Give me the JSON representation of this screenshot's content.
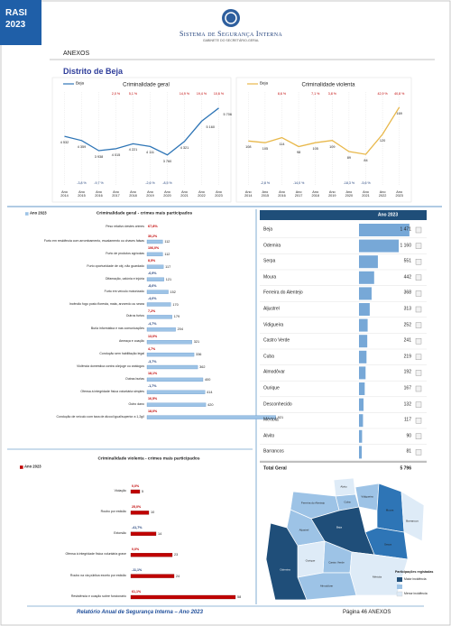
{
  "header": {
    "badge": "RASI 2023",
    "organization": "Sistema de Segurança Interna",
    "subtitle": "Gabinete do Secretário-Geral"
  },
  "section": "ANEXOS",
  "district": "Distrito de Beja",
  "chart_data": [
    {
      "type": "line",
      "title": "Criminalidade geral",
      "categories": [
        "Ano 2014",
        "Ano 2015",
        "Ano 2016",
        "Ano 2017",
        "Ano 2018",
        "Ano 2019",
        "Ano 2020",
        "Ano 2021",
        "Ano 2022",
        "Ano 2023"
      ],
      "series": [
        {
          "name": "Beja",
          "color": "#2e75b6",
          "values": [
            4532,
            4359,
            3938,
            4015,
            4221,
            4111,
            3760,
            4321,
            5160,
            5706
          ],
          "value_labels": [
            "4 532",
            "4 359",
            "3 938",
            "4 015",
            "4 221",
            "4 111",
            "3 760",
            "4 321",
            "5 160",
            "5 706"
          ],
          "change_labels": [
            null,
            "-3,8 %",
            "-9,7 %",
            "2,0 %",
            "5,1 %",
            "-2,6 %",
            "-8,5 %",
            "14,9 %",
            "19,4 %",
            "10,6 %"
          ]
        }
      ],
      "ylim": [
        3000,
        6000
      ]
    },
    {
      "type": "line",
      "title": "Criminalidade violenta",
      "categories": [
        "Ano 2014",
        "Ano 2015",
        "Ano 2016",
        "Ano 2017",
        "Ano 2018",
        "Ano 2019",
        "Ano 2020",
        "Ano 2021",
        "Ano 2022",
        "Ano 2023"
      ],
      "series": [
        {
          "name": "Beja",
          "color": "#e8b84b",
          "values": [
            108,
            105,
            114,
            98,
            105,
            109,
            89,
            84,
            120,
            169
          ],
          "change_labels": [
            null,
            "-2,8 %",
            "8,6 %",
            "-14,0 %",
            "7,1 %",
            "3,8 %",
            "-18,3 %",
            "-5,6 %",
            "42,9 %",
            "40,8 %"
          ]
        }
      ],
      "ylim": [
        50,
        180
      ]
    },
    {
      "type": "bar",
      "orientation": "horizontal",
      "title": "Criminalidade geral - crimes mais participados",
      "note": "Peso relativo destes crimes",
      "note_label": "67,8%",
      "categories": [
        "Furto em residência com arrombamento, escalamento ou chaves falsas",
        "Furto de produtos agrícolas",
        "Furto oportunidade de obj. não guardado",
        "Difamação, calúnia e injúria",
        "Furto em veículo motorizado",
        "Incêndio fogo posto floresta, mata, arvoredo ou seara",
        "Outros furtos",
        "Burla informática e nas comunicações",
        "Ameaça e coação",
        "Condução sem habilitação legal",
        "Violência doméstica contra cônjuge ou análogos",
        "Outras burlas",
        "Ofensa à integridade física voluntária simples",
        "Outro dano",
        "Condução de veículo com taxa de álcool igual/superior a 1,2g/l"
      ],
      "series": [
        {
          "name": "Ano 2023",
          "color": "#9dc3e6",
          "values": [
            112,
            112,
            117,
            121,
            152,
            170,
            179,
            204,
            321,
            336,
            362,
            400,
            414,
            420,
            921
          ],
          "change_labels": [
            "30,2%",
            "106,0%",
            "8,5%",
            "-6,9%",
            "-8,6%",
            "-4,0%",
            "7,2%",
            "-4,7%",
            "13,0%",
            "4,7%",
            "-3,7%",
            "18,1%",
            "-1,7%",
            "16,5%",
            "18,0%"
          ]
        }
      ],
      "xlim": [
        0,
        1000
      ]
    },
    {
      "type": "bar",
      "orientation": "horizontal",
      "title": "Criminalidade violenta - crimes mais participados",
      "categories": [
        "Violação",
        "Roubo por esticão",
        "Extorsão",
        "Ofensa à integridade física voluntária grave",
        "Roubo na via pública exceto por esticão",
        "Resistência e coação sobre funcionário"
      ],
      "series": [
        {
          "name": "Ano 2023",
          "color": "#c00000",
          "values": [
            5,
            10,
            14,
            23,
            24,
            58
          ],
          "change_labels": [
            "0,0%",
            "25,0%",
            "-41,7%",
            "0,0%",
            "-11,1%",
            "61,1%"
          ]
        }
      ],
      "xlim": [
        0,
        60
      ]
    },
    {
      "type": "bar",
      "orientation": "horizontal",
      "style": "table",
      "categories": [
        "Beja",
        "Odemira",
        "Serpa",
        "Moura",
        "Ferreira do Alentejo",
        "Aljustrel",
        "Vidigueira",
        "Castro Verde",
        "Cuba",
        "Almodôvar",
        "Ourique",
        "Desconhecido",
        "Mértola",
        "Alvito",
        "Barrancos"
      ],
      "series": [
        {
          "name": "Ano 2023",
          "color": "#4a8bc9",
          "values": [
            1471,
            1160,
            551,
            442,
            368,
            313,
            252,
            241,
            219,
            192,
            167,
            132,
            117,
            90,
            81
          ],
          "value_labels": [
            "1 471",
            "1 160",
            "551",
            "442",
            "368",
            "313",
            "252",
            "241",
            "219",
            "192",
            "167",
            "132",
            "117",
            "90",
            "81"
          ]
        }
      ],
      "total": {
        "label": "Total Geral",
        "value": 5796,
        "value_label": "5 796"
      },
      "xlim": [
        0,
        1500
      ]
    }
  ],
  "map": {
    "legend_title": "Participações registadas",
    "legend": [
      "Maior incidência",
      "Menor incidência"
    ]
  },
  "footer": {
    "report": "Relatório Anual de Segurança Interna – Ano 2023",
    "page": "Página 46 ANEXOS"
  }
}
